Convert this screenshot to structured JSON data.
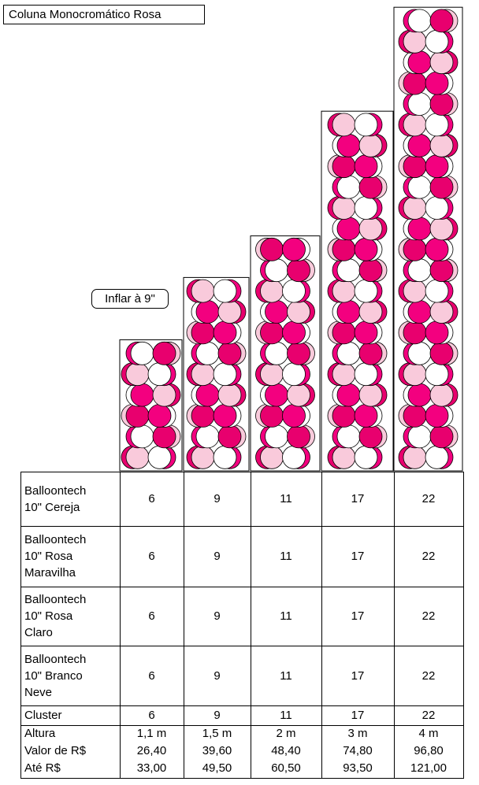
{
  "title": "Coluna Monocromático Rosa",
  "inflate_note": "Inflar à 9\"",
  "colors": {
    "cereja": "#e8006e",
    "rosa_maravilha": "#f3007f",
    "rosa_claro": "#f9cadb",
    "branco_neve": "#ffffff",
    "outline": "#000000"
  },
  "columns": [
    {
      "height_label": "1,1 m",
      "clusters": 6
    },
    {
      "height_label": "1,5 m",
      "clusters": 9
    },
    {
      "height_label": "2 m",
      "clusters": 11
    },
    {
      "height_label": "3 m",
      "clusters": 17
    },
    {
      "height_label": "4 m",
      "clusters": 22
    }
  ],
  "table": {
    "rows": [
      {
        "label": "Balloontech\n10\" Cereja",
        "values": [
          "6",
          "9",
          "11",
          "17",
          "22"
        ]
      },
      {
        "label": "Balloontech\n10\" Rosa\nMaravilha",
        "values": [
          "6",
          "9",
          "11",
          "17",
          "22"
        ]
      },
      {
        "label": "Balloontech\n10\" Rosa\nClaro",
        "values": [
          "6",
          "9",
          "11",
          "17",
          "22"
        ]
      },
      {
        "label": " Balloontech\n 10\" Branco\n Neve",
        "values": [
          "6",
          "9",
          "11",
          "17",
          "22"
        ]
      }
    ],
    "cluster_row": {
      "label": "Cluster",
      "values": [
        "6",
        "9",
        "11",
        "17",
        "22"
      ]
    },
    "height_row": {
      "label": "Altura",
      "values": [
        "1,1 m",
        "1,5 m",
        "2 m",
        "3 m",
        "4 m"
      ]
    },
    "price_from_row": {
      "label": "Valor de  R$",
      "values": [
        "26,40",
        "39,60",
        "48,40",
        "74,80",
        "96,80"
      ]
    },
    "price_to_row": {
      "label": "Até R$",
      "values": [
        "33,00",
        "49,50",
        "60,50",
        "93,50",
        "121,00"
      ]
    }
  }
}
